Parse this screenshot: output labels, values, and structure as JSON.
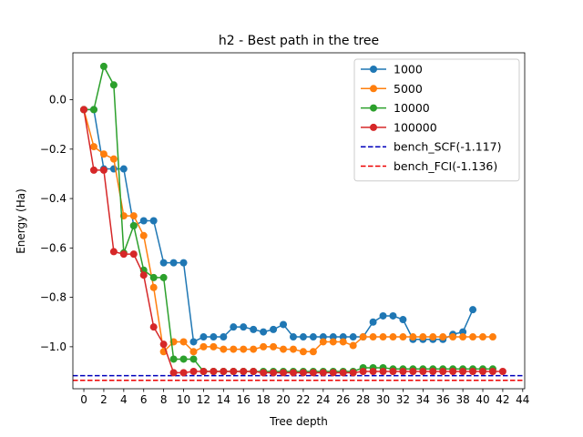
{
  "chart_data": {
    "type": "line",
    "title": "h2 - Best path in the tree",
    "xlabel": "Tree depth",
    "ylabel": "Energy (Ha)",
    "xlim": [
      -1.1,
      44.2
    ],
    "ylim": [
      -1.17,
      0.19
    ],
    "xticks": [
      0,
      2,
      4,
      6,
      8,
      10,
      12,
      14,
      16,
      18,
      20,
      22,
      24,
      26,
      28,
      30,
      32,
      34,
      36,
      38,
      40,
      42,
      44
    ],
    "yticks": [
      0.0,
      -0.2,
      -0.4,
      -0.6,
      -0.8,
      -1.0
    ],
    "ytick_labels": [
      "0.0",
      "−0.2",
      "−0.4",
      "−0.6",
      "−0.8",
      "−1.0"
    ],
    "legend_position": "top-right",
    "grid": false,
    "series": [
      {
        "name": "1000",
        "color": "#1f77b4",
        "values": [
          -0.04,
          -0.04,
          -0.28,
          -0.28,
          -0.28,
          -0.51,
          -0.49,
          -0.49,
          -0.66,
          -0.66,
          -0.66,
          -0.98,
          -0.96,
          -0.96,
          -0.96,
          -0.92,
          -0.92,
          -0.93,
          -0.94,
          -0.93,
          -0.91,
          -0.96,
          -0.96,
          -0.96,
          -0.96,
          -0.96,
          -0.96,
          -0.96,
          -0.96,
          -0.9,
          -0.875,
          -0.875,
          -0.89,
          -0.97,
          -0.97,
          -0.97,
          -0.97,
          -0.95,
          -0.94,
          -0.85
        ]
      },
      {
        "name": "5000",
        "color": "#ff7f0e",
        "values": [
          -0.04,
          -0.19,
          -0.22,
          -0.24,
          -0.47,
          -0.47,
          -0.55,
          -0.76,
          -1.02,
          -0.98,
          -0.98,
          -1.02,
          -1.0,
          -1.0,
          -1.01,
          -1.01,
          -1.01,
          -1.01,
          -1.0,
          -1.0,
          -1.01,
          -1.01,
          -1.02,
          -1.02,
          -0.98,
          -0.98,
          -0.98,
          -0.995,
          -0.96,
          -0.96,
          -0.96,
          -0.96,
          -0.96,
          -0.96,
          -0.96,
          -0.96,
          -0.96,
          -0.96,
          -0.96,
          -0.96,
          -0.96,
          -0.96
        ]
      },
      {
        "name": "10000",
        "color": "#2ca02c",
        "values": [
          -0.04,
          -0.04,
          0.135,
          0.06,
          -0.62,
          -0.51,
          -0.69,
          -0.72,
          -0.72,
          -1.05,
          -1.05,
          -1.05,
          -1.1,
          -1.1,
          -1.1,
          -1.1,
          -1.1,
          -1.1,
          -1.1,
          -1.1,
          -1.1,
          -1.1,
          -1.1,
          -1.1,
          -1.1,
          -1.1,
          -1.1,
          -1.1,
          -1.085,
          -1.085,
          -1.085,
          -1.09,
          -1.09,
          -1.09,
          -1.09,
          -1.09,
          -1.09,
          -1.09,
          -1.09,
          -1.09,
          -1.09,
          -1.09
        ]
      },
      {
        "name": "100000",
        "color": "#d62728",
        "values": [
          -0.04,
          -0.285,
          -0.285,
          -0.615,
          -0.625,
          -0.625,
          -0.71,
          -0.92,
          -0.99,
          -1.105,
          -1.105,
          -1.1,
          -1.1,
          -1.1,
          -1.1,
          -1.1,
          -1.1,
          -1.1,
          -1.105,
          -1.105,
          -1.105,
          -1.105,
          -1.105,
          -1.105,
          -1.105,
          -1.105,
          -1.105,
          -1.105,
          -1.1,
          -1.1,
          -1.1,
          -1.1,
          -1.1,
          -1.1,
          -1.1,
          -1.1,
          -1.1,
          -1.1,
          -1.1,
          -1.1,
          -1.1,
          -1.1,
          -1.1
        ]
      }
    ],
    "reference_lines": [
      {
        "name": "bench_SCF(-1.117)",
        "y": -1.117,
        "color": "#0000bb"
      },
      {
        "name": "bench_FCI(-1.136)",
        "y": -1.136,
        "color": "#ee0000"
      }
    ]
  }
}
